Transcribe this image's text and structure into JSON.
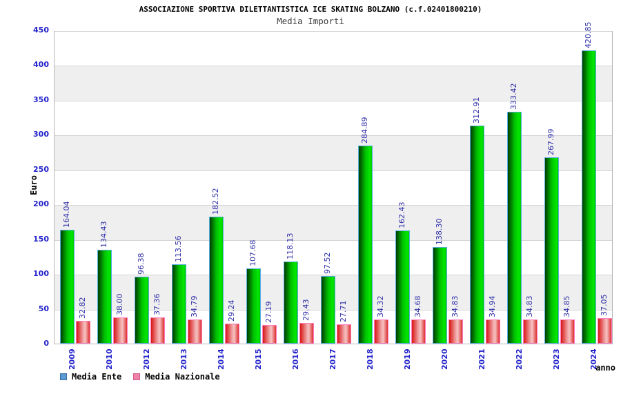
{
  "header": {
    "title": "ASSOCIAZIONE SPORTIVA DILETTANTISTICA ICE SKATING BOLZANO (c.f.02401800210)",
    "subtitle": "Media Importi"
  },
  "chart_data": {
    "type": "bar",
    "title": "Media Importi",
    "categories": [
      "2009",
      "2010",
      "2012",
      "2013",
      "2014",
      "2015",
      "2016",
      "2017",
      "2018",
      "2019",
      "2020",
      "2021",
      "2022",
      "2023",
      "2024"
    ],
    "series": [
      {
        "name": "Media Ente",
        "values": [
          164.04,
          134.43,
          96.38,
          113.56,
          182.52,
          107.68,
          118.13,
          97.52,
          284.89,
          162.43,
          138.3,
          312.91,
          333.42,
          267.99,
          420.85
        ]
      },
      {
        "name": "Media Nazionale",
        "values": [
          32.82,
          38.0,
          37.36,
          34.79,
          29.24,
          27.19,
          29.43,
          27.71,
          34.32,
          34.68,
          34.83,
          34.94,
          34.83,
          34.85,
          37.05
        ]
      }
    ],
    "xlabel": "anno",
    "ylabel": "Euro",
    "ylim": [
      0,
      450
    ],
    "ytick_step": 50,
    "y_ticks": [
      0,
      50,
      100,
      150,
      200,
      250,
      300,
      350,
      400,
      450
    ],
    "grid": true,
    "legend_position": "bottom-left",
    "value_labels": "rotated-90-above-bars"
  },
  "colors": {
    "tick_label_blue": "#2222cc",
    "value_label_navy": "#3232aa",
    "band_gray": "#efefef",
    "grid_line": "#d4d4d4",
    "plot_border": "#b6b6b6",
    "green_bar_gradient": [
      "#003c00",
      "#00c000",
      "#00e800",
      "#00ca00"
    ],
    "green_bar_border": "#58aee0",
    "red_bar_gradient": [
      "#d81616",
      "#f0a8a8",
      "#f6c2c2",
      "#de3030"
    ],
    "red_bar_border": "#ff7cc2",
    "legend_blue_fill": "#5c9ad2",
    "legend_blue_border": "#3a6fa0",
    "legend_pink_fill": "#ef84ab",
    "legend_pink_border": "#d4568a"
  }
}
